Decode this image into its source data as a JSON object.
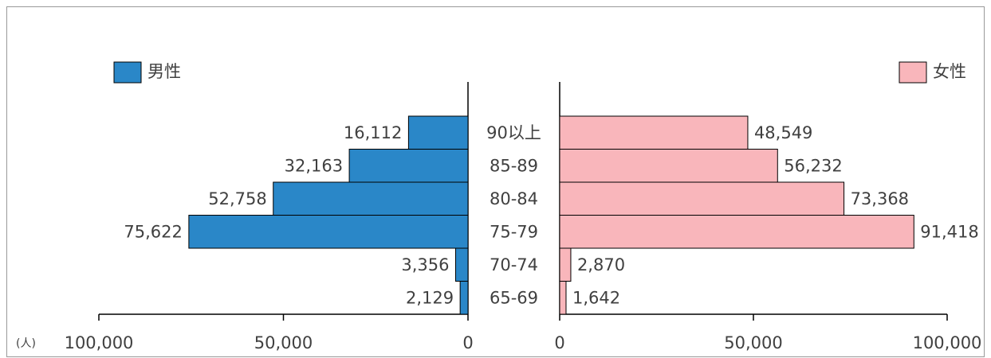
{
  "chart_data": {
    "type": "pyramid",
    "unit_label": "(人)",
    "categories": [
      "90以上",
      "85-89",
      "80-84",
      "75-79",
      "70-74",
      "65-69"
    ],
    "series": [
      {
        "name": "男性",
        "color": "#2a87c8",
        "values": [
          16112,
          32163,
          52758,
          75622,
          3356,
          2129
        ],
        "value_labels": [
          "16,112",
          "32,163",
          "52,758",
          "75,622",
          "3,356",
          "2,129"
        ]
      },
      {
        "name": "女性",
        "color": "#f9b6bb",
        "values": [
          48549,
          56232,
          73368,
          91418,
          2870,
          1642
        ],
        "value_labels": [
          "48,549",
          "56,232",
          "73,368",
          "91,418",
          "2,870",
          "1,642"
        ]
      }
    ],
    "xlim": [
      0,
      100000
    ],
    "xticks": [
      0,
      {
        "value": 50000,
        "label": "50,000"
      },
      {
        "value": 100000,
        "label": "100,000"
      }
    ]
  }
}
